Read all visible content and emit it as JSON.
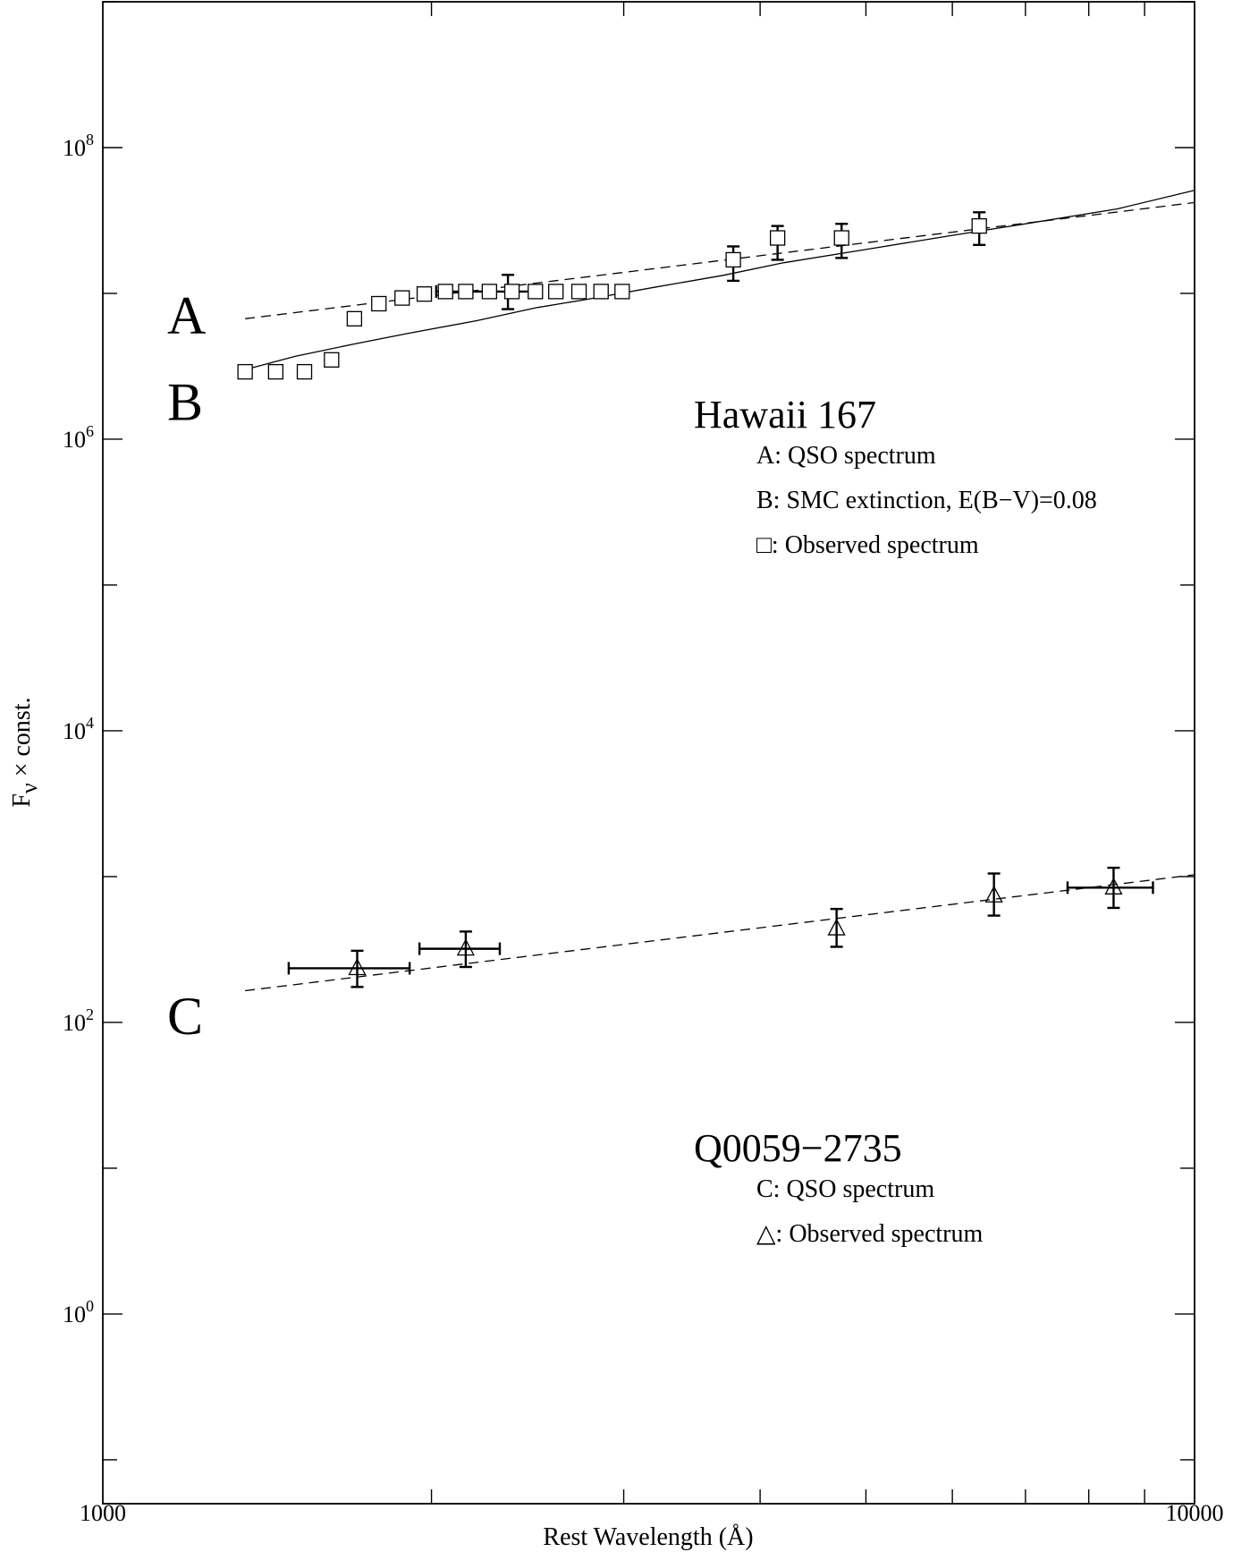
{
  "chart_data": {
    "type": "scatter",
    "xscale": "log",
    "yscale": "log",
    "xlim": [
      1000,
      10000
    ],
    "ylim": [
      0.05,
      1000000000
    ],
    "xlabel": "Rest Wavelength (Å)",
    "ylabel": "F_ν × const.",
    "xticks": [
      {
        "value": 1000,
        "label": "1000"
      },
      {
        "value": 10000,
        "label": "10000"
      }
    ],
    "yticks": [
      {
        "value": 1,
        "base": "10",
        "exp": "0"
      },
      {
        "value": 100,
        "base": "10",
        "exp": "2"
      },
      {
        "value": 10000,
        "base": "10",
        "exp": "4"
      },
      {
        "value": 1000000,
        "base": "10",
        "exp": "6"
      },
      {
        "value": 100000000,
        "base": "10",
        "exp": "8"
      }
    ],
    "curve_labels": [
      {
        "text": "A",
        "y": 7000000
      },
      {
        "text": "B",
        "y": 1800000
      },
      {
        "text": "C",
        "y": 110
      }
    ],
    "groups": [
      {
        "title": "Hawaii 167",
        "legend": [
          {
            "symbol": "",
            "text": "A: QSO spectrum"
          },
          {
            "symbol": "",
            "text": "B: SMC extinction, E(B−V)=0.08"
          },
          {
            "symbol": "□",
            "text": ": Observed spectrum"
          }
        ]
      },
      {
        "title": "Q0059−2735",
        "legend": [
          {
            "symbol": "",
            "text": "C: QSO spectrum"
          },
          {
            "symbol": "△",
            "text": ": Observed spectrum"
          }
        ]
      }
    ],
    "series": [
      {
        "marker": "square",
        "x": [
          1350,
          1440,
          1530,
          1620,
          1700,
          1790,
          1880,
          1970,
          2060,
          2150,
          2260,
          2370,
          2490,
          2600,
          2730,
          2860,
          2990,
          3780,
          4150,
          4750,
          6350
        ],
        "y": [
          2900000,
          2900000,
          2900000,
          3500000,
          6700000,
          8500000,
          9300000,
          9900000,
          10300000,
          10300000,
          10300000,
          10300000,
          10300000,
          10300000,
          10300000,
          10300000,
          10300000,
          17000000,
          24000000,
          24000000,
          29000000
        ],
        "error_points": [
          {
            "x": 2350,
            "y": 10300000,
            "ylo": 7800000,
            "yhi": 13400000,
            "xlo": 2020,
            "xhi": 2490
          },
          {
            "x": 3780,
            "y": 17000000,
            "ylo": 12200000,
            "yhi": 21000000
          },
          {
            "x": 4150,
            "y": 24000000,
            "ylo": 17000000,
            "yhi": 29000000
          },
          {
            "x": 4750,
            "y": 24000000,
            "ylo": 17500000,
            "yhi": 30000000
          },
          {
            "x": 6350,
            "y": 29000000,
            "ylo": 21500000,
            "yhi": 36000000
          }
        ]
      },
      {
        "marker": "triangle",
        "x": [
          1710,
          2150,
          4700,
          6550,
          8430
        ],
        "y": [
          235,
          320,
          440,
          740,
          840
        ],
        "error_points": [
          {
            "x": 1710,
            "y": 235,
            "ylo": 175,
            "yhi": 310,
            "xlo": 1480,
            "xhi": 1910
          },
          {
            "x": 2150,
            "y": 320,
            "ylo": 240,
            "yhi": 420,
            "xlo": 1950,
            "xhi": 2310
          },
          {
            "x": 4700,
            "y": 440,
            "ylo": 330,
            "yhi": 600
          },
          {
            "x": 6550,
            "y": 740,
            "ylo": 540,
            "yhi": 1050
          },
          {
            "x": 8430,
            "y": 840,
            "ylo": 610,
            "yhi": 1150,
            "xlo": 7650,
            "xhi": 9160
          }
        ]
      },
      {
        "style": "dashed",
        "x": [
          1350,
          10000
        ],
        "y": [
          6700000,
          42000000
        ]
      },
      {
        "style": "solid",
        "x": [
          1350,
          1500,
          1700,
          1900,
          2200,
          2500,
          2800,
          3200,
          3700,
          4200,
          5000,
          6000,
          7000,
          8500,
          10000
        ],
        "y": [
          3000000,
          3700000,
          4500000,
          5300000,
          6500000,
          8000000,
          9200000,
          11000000,
          13300000,
          16200000,
          20000000,
          25000000,
          30000000,
          38000000,
          51000000
        ]
      },
      {
        "style": "dashed",
        "x": [
          1350,
          10000
        ],
        "y": [
          165,
          1030
        ]
      }
    ]
  }
}
